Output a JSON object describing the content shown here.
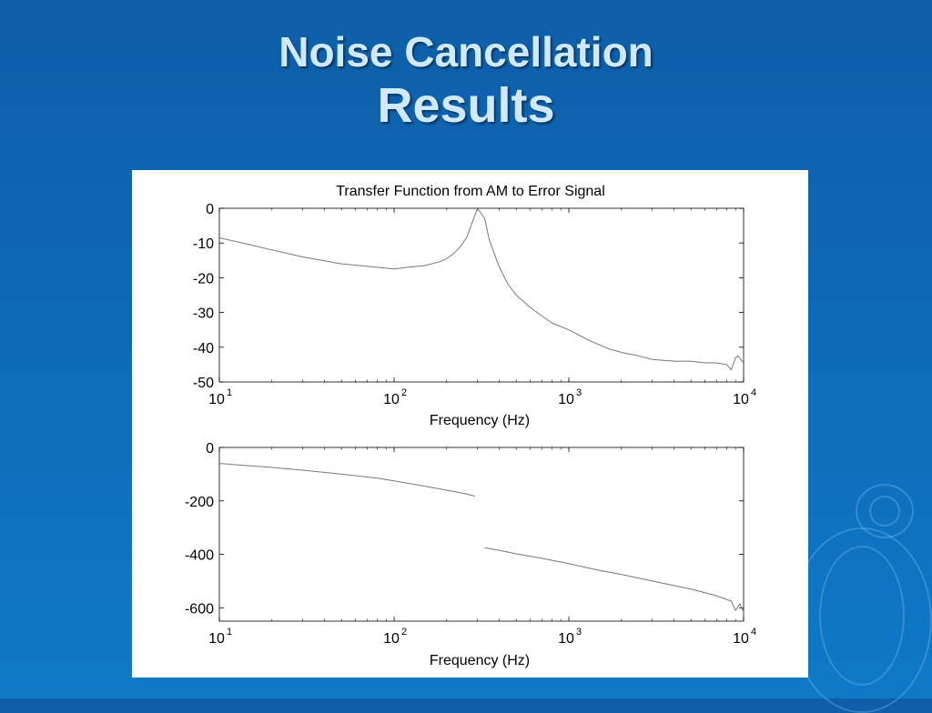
{
  "slide": {
    "title_line1": "Noise Cancellation",
    "title_line2": "Results",
    "background_color": "#0e69b6",
    "title_color": "#cfe9ff"
  },
  "chart_data": [
    {
      "type": "line",
      "title": "Transfer Function from AM to Error Signal",
      "xlabel": "Frequency (Hz)",
      "ylabel": "",
      "xscale": "log",
      "xlim": [
        10,
        10000
      ],
      "ylim": [
        -50,
        0
      ],
      "xticks": [
        {
          "base": "10",
          "exp": "1",
          "value": 10
        },
        {
          "base": "10",
          "exp": "2",
          "value": 100
        },
        {
          "base": "10",
          "exp": "3",
          "value": 1000
        },
        {
          "base": "10",
          "exp": "4",
          "value": 10000
        }
      ],
      "yticks": [
        0,
        -10,
        -20,
        -30,
        -40,
        -50
      ],
      "grid": false,
      "series": [
        {
          "color": "#777777",
          "x": [
            10,
            15,
            20,
            30,
            50,
            80,
            100,
            120,
            150,
            180,
            200,
            220,
            240,
            260,
            280,
            300,
            330,
            350,
            400,
            450,
            500,
            600,
            700,
            800,
            1000,
            1300,
            1700,
            2000,
            2500,
            3000,
            4000,
            5000,
            6000,
            7000,
            8000,
            8500,
            9000,
            9300,
            10000
          ],
          "y": [
            -8.5,
            -10.5,
            -12,
            -14,
            -16,
            -17,
            -17.5,
            -17,
            -16.5,
            -15.5,
            -14.5,
            -13,
            -11,
            -8.5,
            -4,
            0,
            -3,
            -9,
            -17,
            -22,
            -25,
            -28.5,
            -31,
            -33,
            -35,
            -38,
            -40.5,
            -41.5,
            -42.5,
            -43.5,
            -44,
            -44,
            -44.5,
            -44.5,
            -45,
            -46.5,
            -43,
            -42.5,
            -44.5
          ]
        }
      ]
    },
    {
      "type": "line",
      "title": "",
      "xlabel": "Frequency (Hz)",
      "ylabel": "",
      "xscale": "log",
      "xlim": [
        10,
        10000
      ],
      "ylim": [
        -650,
        0
      ],
      "xticks": [
        {
          "base": "10",
          "exp": "1",
          "value": 10
        },
        {
          "base": "10",
          "exp": "2",
          "value": 100
        },
        {
          "base": "10",
          "exp": "3",
          "value": 1000
        },
        {
          "base": "10",
          "exp": "4",
          "value": 10000
        }
      ],
      "yticks": [
        0,
        -200,
        -400,
        -600
      ],
      "grid": false,
      "series": [
        {
          "color": "#777777",
          "segments": [
            {
              "x": [
                10,
                20,
                30,
                50,
                80,
                100,
                150,
                200,
                250,
                290
              ],
              "y": [
                -60,
                -75,
                -85,
                -100,
                -115,
                -125,
                -145,
                -160,
                -172,
                -182
              ]
            },
            {
              "x": [
                330,
                400,
                500,
                700,
                1000,
                1500,
                2000,
                3000,
                5000,
                7000,
                8500,
                9000,
                9500,
                10000
              ],
              "y": [
                -375,
                -385,
                -398,
                -415,
                -435,
                -460,
                -475,
                -500,
                -530,
                -555,
                -575,
                -610,
                -585,
                -615
              ]
            }
          ]
        }
      ]
    }
  ]
}
